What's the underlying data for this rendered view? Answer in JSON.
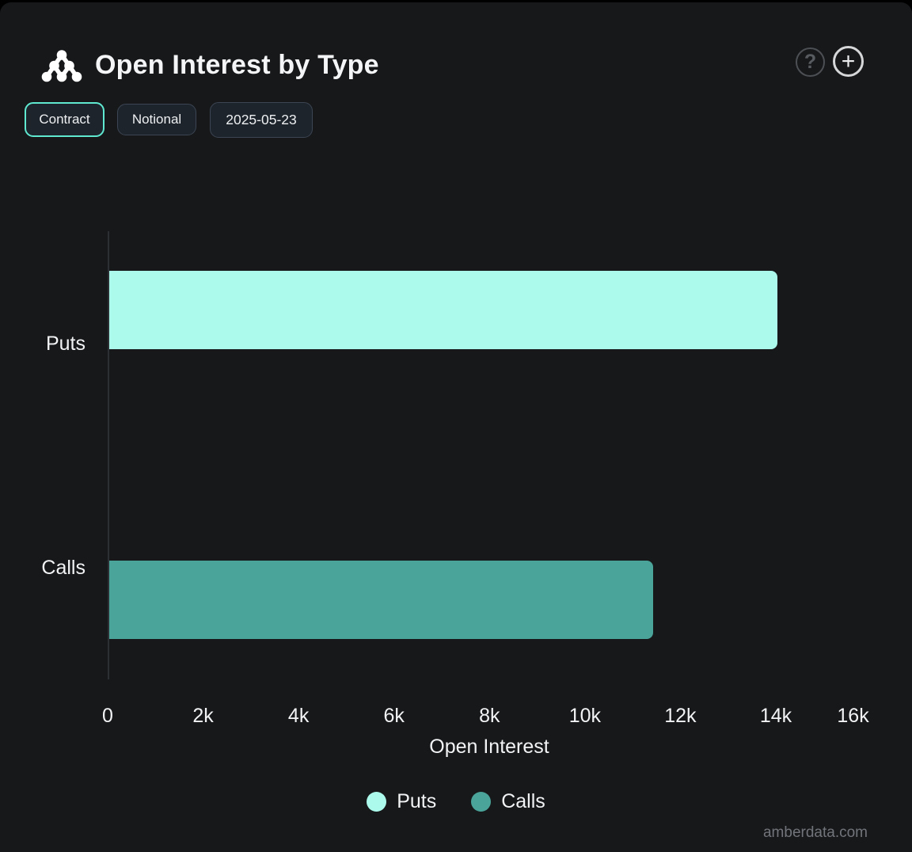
{
  "header": {
    "title": "Open Interest by Type",
    "help_glyph": "?",
    "add_glyph": "+"
  },
  "toolbar": {
    "contract_label": "Contract",
    "notional_label": "Notional",
    "date_label": "2025-05-23"
  },
  "chart_data": {
    "type": "bar",
    "orientation": "horizontal",
    "title": "Open Interest by Type",
    "categories": [
      "Puts",
      "Calls"
    ],
    "values": [
      14000,
      11400
    ],
    "series_colors": [
      "#ACFAEC",
      "#4AA49A"
    ],
    "xlabel": "Open Interest",
    "x_ticks": [
      "0",
      "2k",
      "4k",
      "6k",
      "8k",
      "10k",
      "12k",
      "14k",
      "16k"
    ],
    "xlim": [
      0,
      16000
    ],
    "grid": false,
    "legend": [
      {
        "label": "Puts",
        "color": "#ACFAEC"
      },
      {
        "label": "Calls",
        "color": "#4AA49A"
      }
    ],
    "legend_position": "bottom"
  },
  "colors": {
    "background": "#17181A",
    "accent_mint": "#5FE9D1",
    "puts_bar": "#ACFAEC",
    "calls_bar": "#4AA49A"
  },
  "watermark": "amberdata.com"
}
